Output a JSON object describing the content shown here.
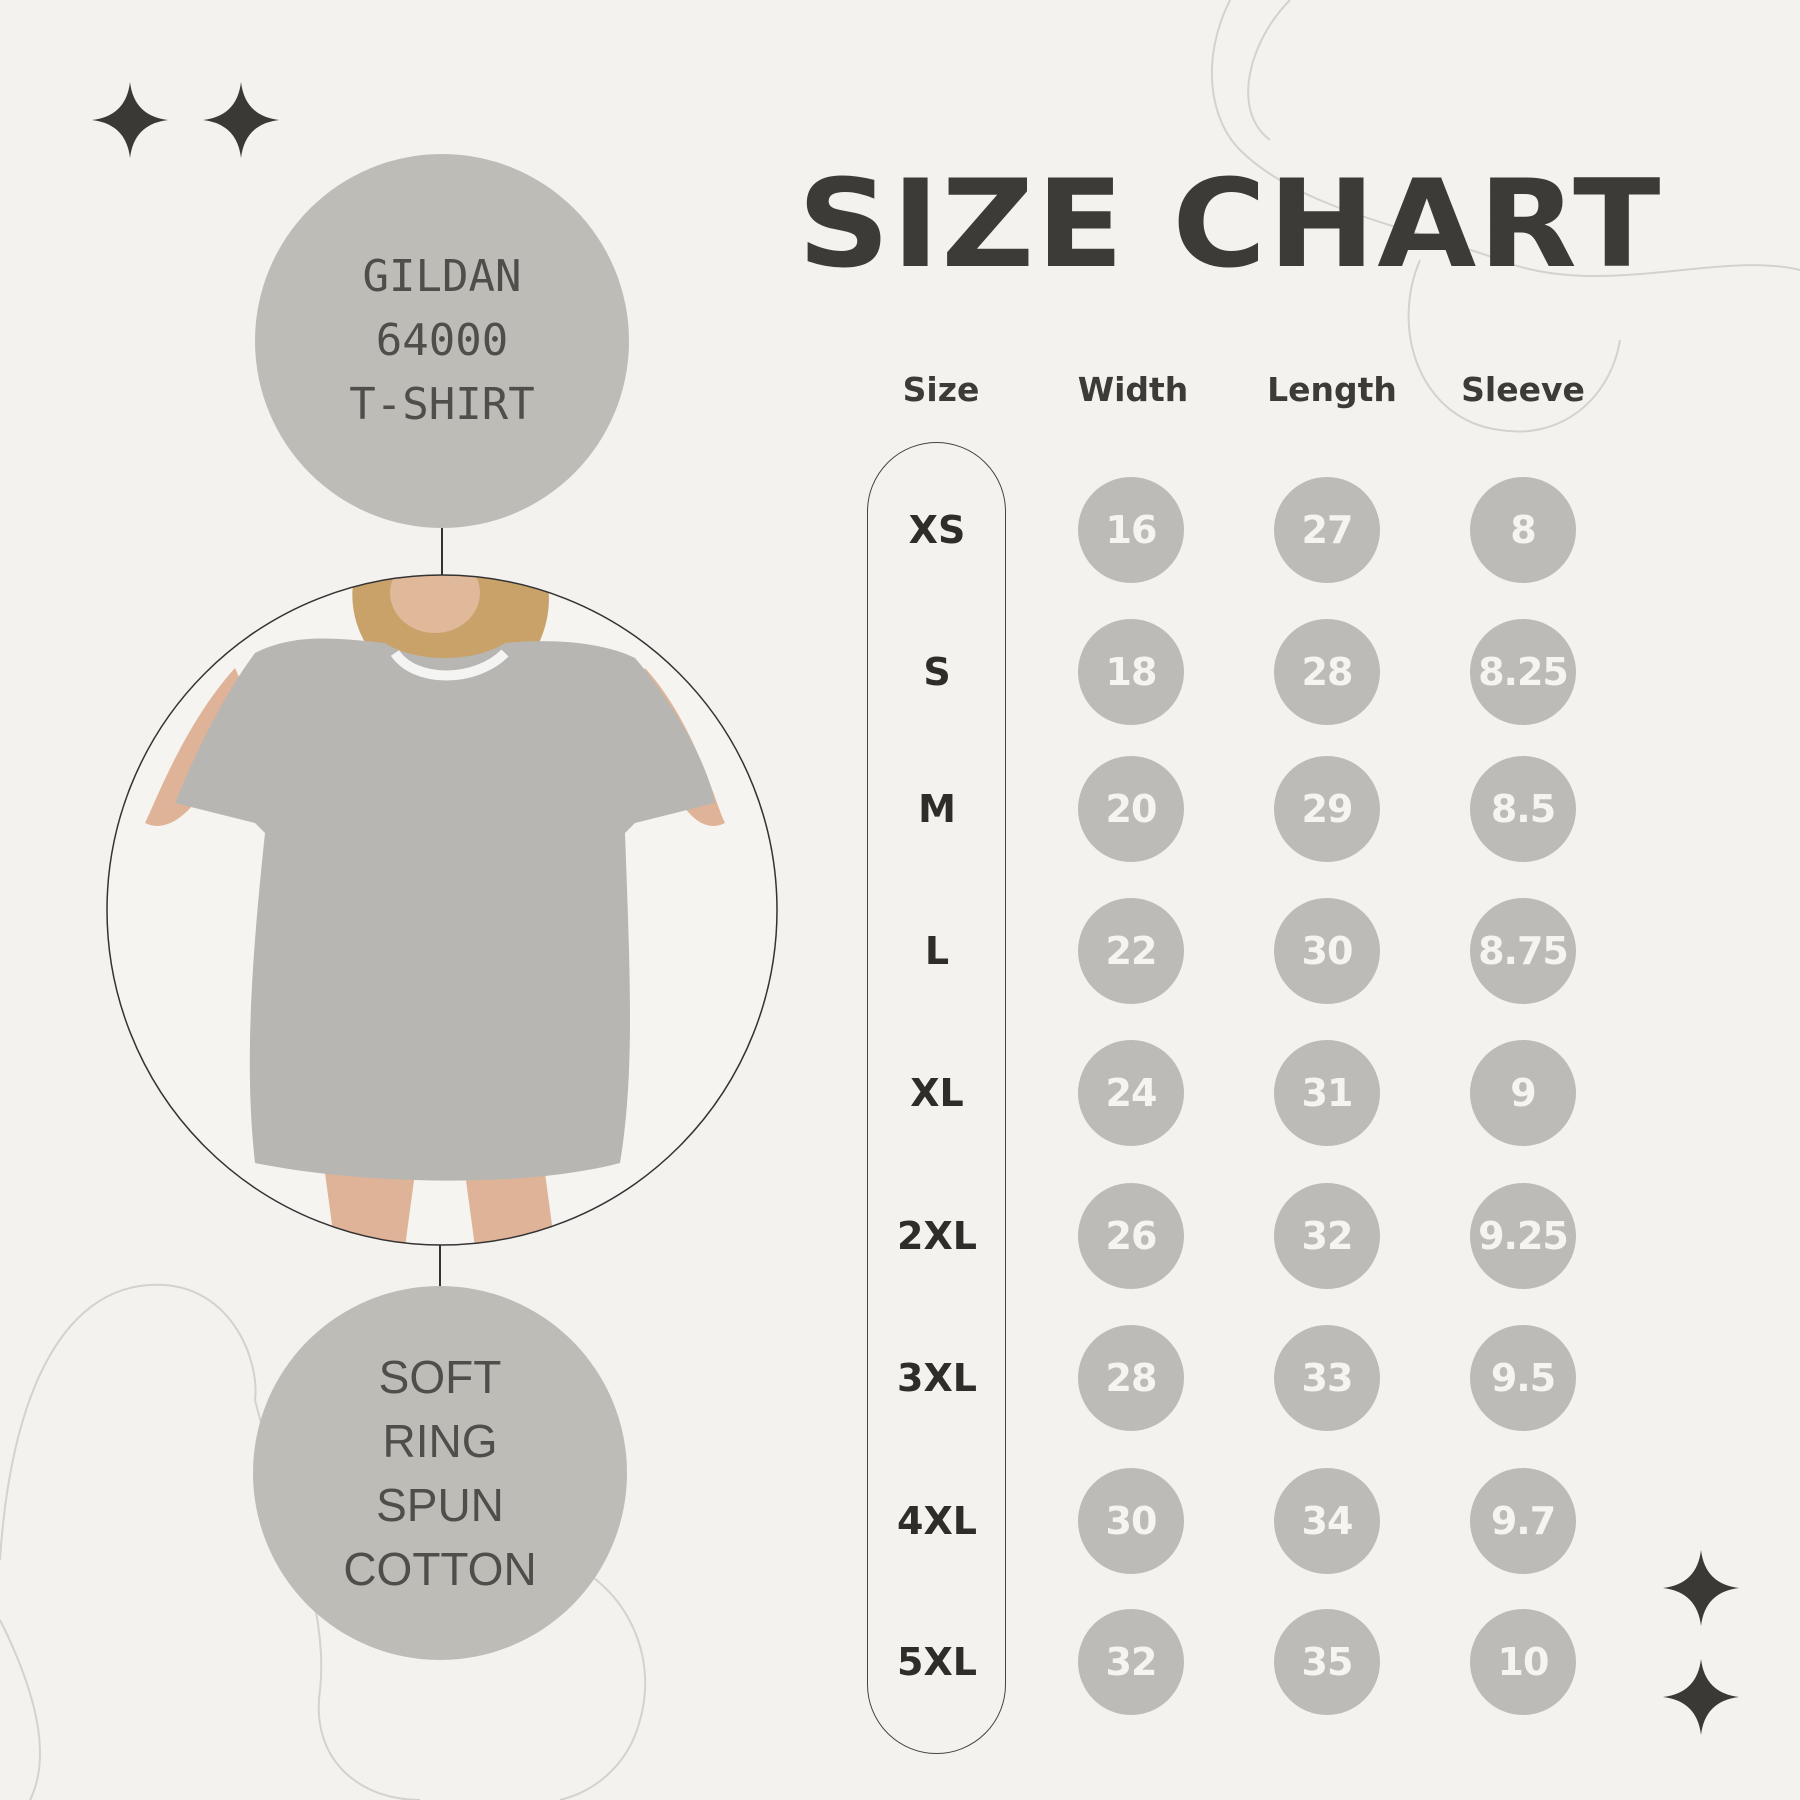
{
  "title": "SIZE CHART",
  "product_circle": {
    "lines": [
      "GILDAN",
      "64000",
      "T-SHIRT"
    ]
  },
  "material_circle": {
    "lines": [
      "SOFT",
      "RING",
      "SPUN",
      "COTTON"
    ]
  },
  "photo": {
    "description_icon": "model-wearing-gray-tshirt-photo"
  },
  "table": {
    "headers": [
      "Size",
      "Width",
      "Length",
      "Sleeve"
    ],
    "rows": [
      {
        "size": "XS",
        "width": "16",
        "length": "27",
        "sleeve": "8"
      },
      {
        "size": "S",
        "width": "18",
        "length": "28",
        "sleeve": "8.25"
      },
      {
        "size": "M",
        "width": "20",
        "length": "29",
        "sleeve": "8.5"
      },
      {
        "size": "L",
        "width": "22",
        "length": "30",
        "sleeve": "8.75"
      },
      {
        "size": "XL",
        "width": "24",
        "length": "31",
        "sleeve": "9"
      },
      {
        "size": "2XL",
        "width": "26",
        "length": "32",
        "sleeve": "9.25"
      },
      {
        "size": "3XL",
        "width": "28",
        "length": "33",
        "sleeve": "9.5"
      },
      {
        "size": "4XL",
        "width": "30",
        "length": "34",
        "sleeve": "9.7"
      },
      {
        "size": "5XL",
        "width": "32",
        "length": "35",
        "sleeve": "10"
      }
    ]
  },
  "colors": {
    "background": "#f3f2ee",
    "circle": "#bdbbb7",
    "text_dark": "#3c3b37",
    "value_text": "#f5f4f0"
  },
  "icons": [
    "sparkle-star-icon"
  ]
}
